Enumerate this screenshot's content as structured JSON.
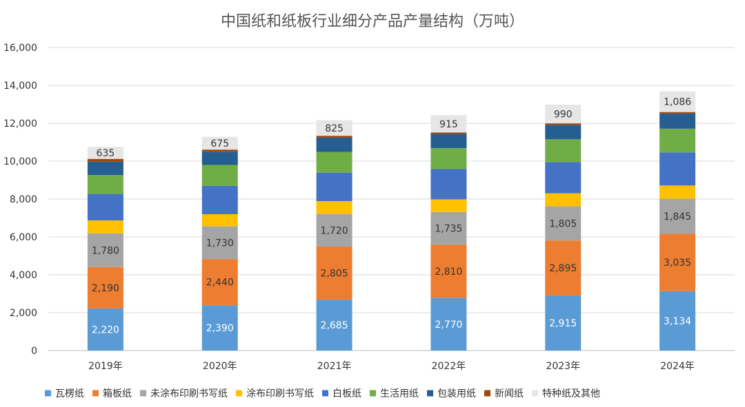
{
  "chart_data": {
    "type": "bar",
    "stacked": true,
    "title": "中国纸和纸板行业细分产品产量结构（万吨）",
    "xlabel": "",
    "ylabel": "",
    "ylim": [
      0,
      16000
    ],
    "yticks": [
      0,
      2000,
      4000,
      6000,
      8000,
      10000,
      12000,
      14000,
      16000
    ],
    "ytick_labels": [
      "0",
      "2,000",
      "4,000",
      "6,000",
      "8,000",
      "10,000",
      "12,000",
      "14,000",
      "16,000"
    ],
    "grid": true,
    "legend_position": "bottom",
    "categories": [
      "2019年",
      "2020年",
      "2021年",
      "2022年",
      "2023年",
      "2024年"
    ],
    "series": [
      {
        "name": "瓦楞纸",
        "color": "#5B9BD5",
        "values": [
          2220,
          2390,
          2685,
          2770,
          2915,
          3134
        ],
        "labels": [
          "2,220",
          "2,390",
          "2,685",
          "2,770",
          "2,915",
          "3,134"
        ],
        "label_color": "#ffffff"
      },
      {
        "name": "箱板纸",
        "color": "#ED7D31",
        "values": [
          2190,
          2440,
          2805,
          2810,
          2895,
          3035
        ],
        "labels": [
          "2,190",
          "2,440",
          "2,805",
          "2,810",
          "2,895",
          "3,035"
        ],
        "label_color": "#333333"
      },
      {
        "name": "未涂布印刷书写纸",
        "color": "#A5A5A5",
        "values": [
          1780,
          1730,
          1720,
          1735,
          1805,
          1845
        ],
        "labels": [
          "1,780",
          "1,730",
          "1,720",
          "1,735",
          "1,805",
          "1,845"
        ],
        "label_color": "#333333"
      },
      {
        "name": "涂布印刷书写纸",
        "color": "#FFC000",
        "values": [
          680,
          640,
          680,
          670,
          690,
          700
        ]
      },
      {
        "name": "白板纸",
        "color": "#4472C4",
        "values": [
          1400,
          1500,
          1500,
          1600,
          1650,
          1750
        ]
      },
      {
        "name": "生活用纸",
        "color": "#70AD47",
        "values": [
          1000,
          1100,
          1100,
          1100,
          1200,
          1250
        ]
      },
      {
        "name": "包装用纸",
        "color": "#255E91",
        "values": [
          700,
          700,
          750,
          750,
          750,
          800
        ]
      },
      {
        "name": "新闻纸",
        "color": "#9E480E",
        "values": [
          150,
          110,
          100,
          80,
          90,
          80
        ]
      },
      {
        "name": "特种纸及其他",
        "color": "#E7E6E6",
        "values": [
          635,
          675,
          825,
          915,
          990,
          1086
        ],
        "labels": [
          "635",
          "675",
          "825",
          "915",
          "990",
          "1,086"
        ],
        "label_color": "#333333"
      }
    ]
  }
}
